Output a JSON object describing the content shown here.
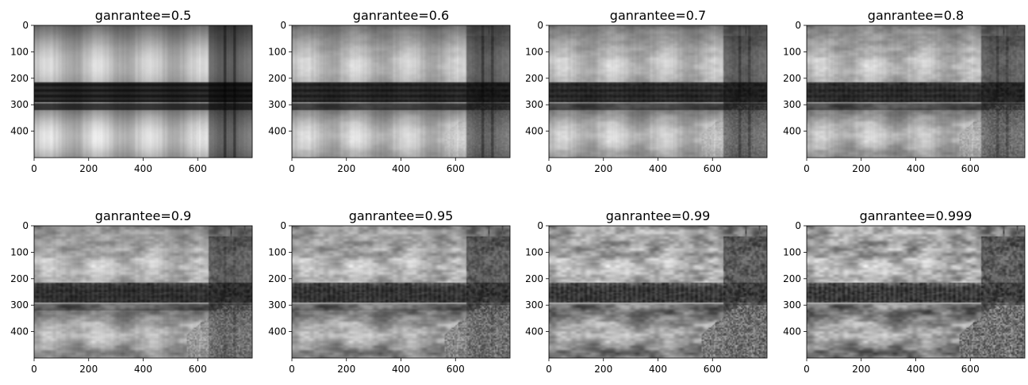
{
  "figure": {
    "layout": "2x4 grid of grayscale image subplots (SVD reconstruction at increasing energy retention)",
    "colormap": "gray"
  },
  "chart_data": [
    {
      "type": "heatmap",
      "title": "ganrantee=0.5",
      "image_width": 800,
      "image_height": 500,
      "detail": 0.05,
      "xticks": [
        0,
        200,
        400,
        600
      ],
      "yticks": [
        0,
        100,
        200,
        300,
        400
      ],
      "xlim": [
        0,
        800
      ],
      "ylim": [
        500,
        0
      ]
    },
    {
      "type": "heatmap",
      "title": "ganrantee=0.6",
      "image_width": 800,
      "image_height": 500,
      "detail": 0.18,
      "xticks": [
        0,
        200,
        400,
        600
      ],
      "yticks": [
        0,
        100,
        200,
        300,
        400
      ],
      "xlim": [
        0,
        800
      ],
      "ylim": [
        500,
        0
      ]
    },
    {
      "type": "heatmap",
      "title": "ganrantee=0.7",
      "image_width": 800,
      "image_height": 500,
      "detail": 0.3,
      "xticks": [
        0,
        200,
        400,
        600
      ],
      "yticks": [
        0,
        100,
        200,
        300,
        400
      ],
      "xlim": [
        0,
        800
      ],
      "ylim": [
        500,
        0
      ]
    },
    {
      "type": "heatmap",
      "title": "ganrantee=0.8",
      "image_width": 800,
      "image_height": 500,
      "detail": 0.42,
      "xticks": [
        0,
        200,
        400,
        600
      ],
      "yticks": [
        0,
        100,
        200,
        300,
        400
      ],
      "xlim": [
        0,
        800
      ],
      "ylim": [
        500,
        0
      ]
    },
    {
      "type": "heatmap",
      "title": "ganrantee=0.9",
      "image_width": 800,
      "image_height": 500,
      "detail": 0.62,
      "xticks": [
        0,
        200,
        400,
        600
      ],
      "yticks": [
        0,
        100,
        200,
        300,
        400
      ],
      "xlim": [
        0,
        800
      ],
      "ylim": [
        500,
        0
      ]
    },
    {
      "type": "heatmap",
      "title": "ganrantee=0.95",
      "image_width": 800,
      "image_height": 500,
      "detail": 0.78,
      "xticks": [
        0,
        200,
        400,
        600
      ],
      "yticks": [
        0,
        100,
        200,
        300,
        400
      ],
      "xlim": [
        0,
        800
      ],
      "ylim": [
        500,
        0
      ]
    },
    {
      "type": "heatmap",
      "title": "ganrantee=0.99",
      "image_width": 800,
      "image_height": 500,
      "detail": 0.93,
      "xticks": [
        0,
        200,
        400,
        600
      ],
      "yticks": [
        0,
        100,
        200,
        300,
        400
      ],
      "xlim": [
        0,
        800
      ],
      "ylim": [
        500,
        0
      ]
    },
    {
      "type": "heatmap",
      "title": "ganrantee=0.999",
      "image_width": 800,
      "image_height": 500,
      "detail": 1.0,
      "xticks": [
        0,
        200,
        400,
        600
      ],
      "yticks": [
        0,
        100,
        200,
        300,
        400
      ],
      "xlim": [
        0,
        800
      ],
      "ylim": [
        500,
        0
      ]
    }
  ]
}
